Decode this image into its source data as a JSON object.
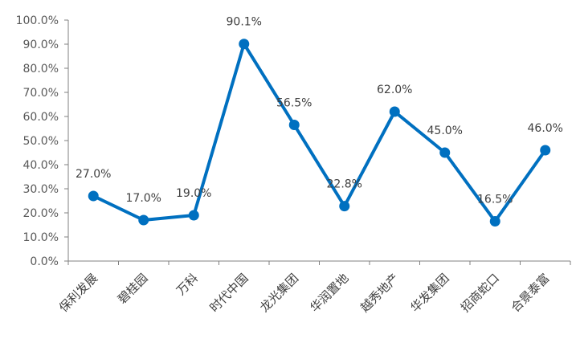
{
  "chart_data": {
    "type": "line",
    "title": "",
    "xlabel": "",
    "ylabel": "",
    "categories": [
      "保利发展",
      "碧桂园",
      "万科",
      "时代中国",
      "龙光集团",
      "华润置地",
      "越秀地产",
      "华发集团",
      "招商蛇口",
      "合景泰富"
    ],
    "series": [
      {
        "values": [
          27.0,
          17.0,
          19.0,
          90.1,
          56.5,
          22.8,
          62.0,
          45.0,
          16.5,
          46.0
        ],
        "labels": [
          "27.0%",
          "17.0%",
          "19.0%",
          "90.1%",
          "56.5%",
          "22.8%",
          "62.0%",
          "45.0%",
          "16.5%",
          "46.0%"
        ],
        "color": "#0070C0"
      }
    ],
    "ylim": [
      0,
      100
    ],
    "yticks": [
      0,
      10,
      20,
      30,
      40,
      50,
      60,
      70,
      80,
      90,
      100
    ],
    "ytick_labels": [
      "0.0%",
      "10.0%",
      "20.0%",
      "30.0%",
      "40.0%",
      "50.0%",
      "60.0%",
      "70.0%",
      "80.0%",
      "90.0%",
      "100.0%"
    ],
    "grid": false,
    "legend": "none",
    "axis_color": "#808080"
  }
}
